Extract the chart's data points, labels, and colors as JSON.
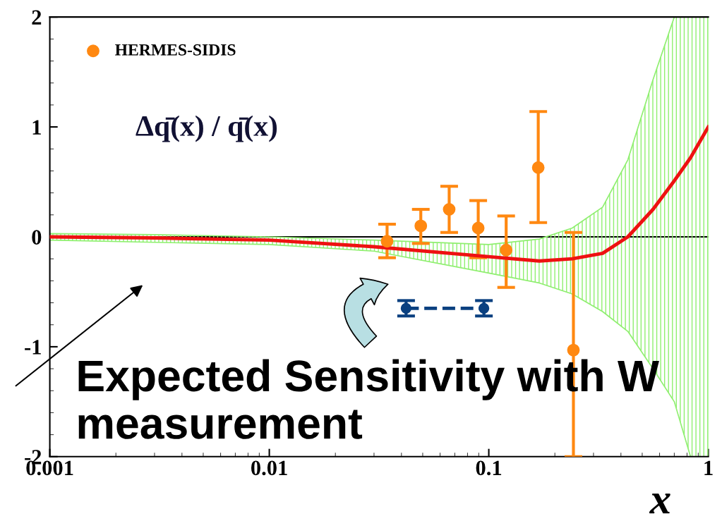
{
  "chart_data": {
    "type": "line",
    "log": "x",
    "xlim": [
      0.001,
      1
    ],
    "ylim": [
      -2,
      2
    ],
    "xticks": [
      0.001,
      0.01,
      0.1,
      1
    ],
    "yticks": [
      -2,
      -1,
      0,
      1,
      2
    ],
    "xlabel": "x",
    "grid": false,
    "legend": "top left",
    "series": [
      {
        "color": "#ee1111",
        "marker": "none",
        "line_style": "solid",
        "x": [
          0.001,
          0.003,
          0.01,
          0.03,
          0.1,
          0.17,
          0.24,
          0.33,
          0.43,
          0.56,
          0.7,
          0.83,
          1.0
        ],
        "values": [
          0,
          -0.01,
          -0.03,
          -0.09,
          -0.18,
          -0.22,
          -0.2,
          -0.15,
          0.0,
          0.25,
          0.51,
          0.72,
          1.0
        ],
        "upper": [
          0.03,
          0.02,
          0.0,
          -0.03,
          -0.07,
          -0.02,
          0.08,
          0.27,
          0.7,
          1.43,
          2.0,
          2.0,
          2.0
        ],
        "lower": [
          -0.03,
          -0.05,
          -0.07,
          -0.13,
          -0.33,
          -0.42,
          -0.52,
          -0.68,
          -0.86,
          -1.2,
          -1.5,
          -2.0,
          -2.0
        ]
      },
      {
        "type": "scatter",
        "name": "HERMES-SIDIS",
        "color": "#ff8811",
        "marker": "circle",
        "x": [
          0.0344,
          0.049,
          0.066,
          0.0895,
          0.12,
          0.168,
          0.243
        ],
        "values": [
          -0.04,
          0.1,
          0.25,
          0.08,
          -0.12,
          0.63,
          -1.03
        ],
        "errors": [
          [
            -0.19,
            0.115
          ],
          [
            -0.06,
            0.25
          ],
          [
            0.04,
            0.46
          ],
          [
            -0.19,
            0.33
          ],
          [
            -0.46,
            0.19
          ],
          [
            0.13,
            1.14
          ],
          [
            -2.0,
            0.04
          ]
        ]
      },
      {
        "color": "#0a4080",
        "marker": "circle",
        "line_style": "dashed",
        "x": [
          0.042,
          0.095
        ],
        "values": [
          -0.65,
          -0.65
        ],
        "errors": [
          0.07,
          0.07
        ]
      }
    ],
    "ref_lines": [
      {
        "axis": "y",
        "value": 0,
        "color": "#000000",
        "line_style": "solid"
      }
    ],
    "annotations": [
      "Δq̄(x) / q̄(x)",
      "Expected Sensitivity with W measurement"
    ]
  }
}
